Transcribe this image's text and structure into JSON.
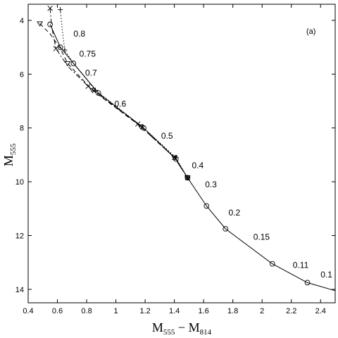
{
  "chart_data": {
    "type": "line",
    "panel_label": "(a)",
    "xlabel": {
      "main": "M",
      "sub1": "555",
      "mid": " − M",
      "sub2": "814"
    },
    "ylabel": {
      "main": "M",
      "sub": "555"
    },
    "xlim": [
      0.4,
      2.5
    ],
    "ylim": [
      14.5,
      3.4
    ],
    "y_inverted": true,
    "grid": false,
    "xticks": [
      "0.4",
      "0.6",
      "0.8",
      "1",
      "1.2",
      "1.4",
      "1.6",
      "1.8",
      "2",
      "2.2",
      "2.4"
    ],
    "xtick_values": [
      0.4,
      0.6,
      0.8,
      1.0,
      1.2,
      1.4,
      1.6,
      1.8,
      2.0,
      2.2,
      2.4
    ],
    "yticks": [
      "4",
      "6",
      "8",
      "10",
      "12",
      "14"
    ],
    "ytick_values": [
      4,
      6,
      8,
      10,
      12,
      14
    ],
    "series": [
      {
        "style": "solid",
        "marker": "circle",
        "points": [
          [
            0.55,
            4.15
          ],
          [
            0.62,
            5.0
          ],
          [
            0.71,
            5.6
          ],
          [
            0.88,
            6.7
          ],
          [
            1.19,
            8.0
          ],
          [
            1.41,
            9.15
          ],
          [
            1.49,
            9.85
          ],
          [
            1.62,
            10.9
          ],
          [
            1.75,
            11.75
          ],
          [
            2.07,
            13.05
          ],
          [
            2.31,
            13.75
          ],
          [
            2.5,
            14.05
          ]
        ],
        "marked": [
          [
            0.55,
            4.15
          ],
          [
            0.62,
            5.0
          ],
          [
            0.71,
            5.6
          ],
          [
            0.88,
            6.7
          ],
          [
            1.19,
            8.0
          ],
          [
            1.41,
            9.15
          ],
          [
            1.49,
            9.85
          ],
          [
            1.62,
            10.9
          ],
          [
            1.75,
            11.75
          ],
          [
            2.07,
            13.05
          ],
          [
            2.31,
            13.75
          ]
        ]
      },
      {
        "style": "dashed",
        "marker": "triangle-down",
        "points": [
          [
            0.48,
            4.12
          ],
          [
            0.55,
            4.5
          ],
          [
            0.62,
            5.05
          ],
          [
            0.67,
            5.6
          ],
          [
            0.84,
            6.6
          ],
          [
            1.17,
            7.95
          ],
          [
            1.4,
            9.1
          ],
          [
            1.49,
            9.85
          ]
        ],
        "marked": [
          [
            0.48,
            4.12
          ],
          [
            0.67,
            5.6
          ],
          [
            0.84,
            6.6
          ],
          [
            1.17,
            7.95
          ],
          [
            1.4,
            9.1
          ],
          [
            1.49,
            9.85
          ]
        ]
      },
      {
        "style": "dashdot",
        "marker": "x",
        "points": [
          [
            0.55,
            3.55
          ],
          [
            0.56,
            4.2
          ],
          [
            0.59,
            5.05
          ],
          [
            0.67,
            5.7
          ],
          [
            0.81,
            6.45
          ],
          [
            1.15,
            7.85
          ],
          [
            1.4,
            9.1
          ],
          [
            1.49,
            9.85
          ]
        ],
        "marked": [
          [
            0.55,
            3.55
          ],
          [
            0.59,
            5.05
          ],
          [
            0.81,
            6.45
          ],
          [
            1.15,
            7.85
          ],
          [
            1.4,
            9.1
          ],
          [
            1.49,
            9.85
          ]
        ]
      },
      {
        "style": "dotted",
        "marker": "plus",
        "points": [
          [
            0.62,
            3.6
          ],
          [
            0.63,
            4.2
          ],
          [
            0.65,
            5.1
          ],
          [
            0.71,
            5.6
          ],
          [
            0.86,
            6.6
          ],
          [
            1.18,
            7.95
          ],
          [
            1.41,
            9.1
          ],
          [
            1.49,
            9.85
          ]
        ],
        "marked": [
          [
            0.62,
            3.6
          ],
          [
            0.65,
            5.1
          ],
          [
            0.86,
            6.6
          ],
          [
            1.18,
            7.95
          ],
          [
            1.41,
            9.1
          ],
          [
            1.49,
            9.85
          ]
        ]
      }
    ],
    "annotations": [
      {
        "text": "0.8",
        "x": 0.71,
        "y": 4.5
      },
      {
        "text": "0.75",
        "x": 0.75,
        "y": 5.25
      },
      {
        "text": "0.7",
        "x": 0.79,
        "y": 5.95
      },
      {
        "text": "0.6",
        "x": 0.99,
        "y": 7.1
      },
      {
        "text": "0.5",
        "x": 1.31,
        "y": 8.3
      },
      {
        "text": "0.4",
        "x": 1.52,
        "y": 9.4
      },
      {
        "text": "0.3",
        "x": 1.61,
        "y": 10.1
      },
      {
        "text": "0.2",
        "x": 1.77,
        "y": 11.15
      },
      {
        "text": "0.15",
        "x": 1.94,
        "y": 12.05
      },
      {
        "text": "0.11",
        "x": 2.21,
        "y": 13.1
      },
      {
        "text": "0.1",
        "x": 2.4,
        "y": 13.45
      }
    ]
  }
}
